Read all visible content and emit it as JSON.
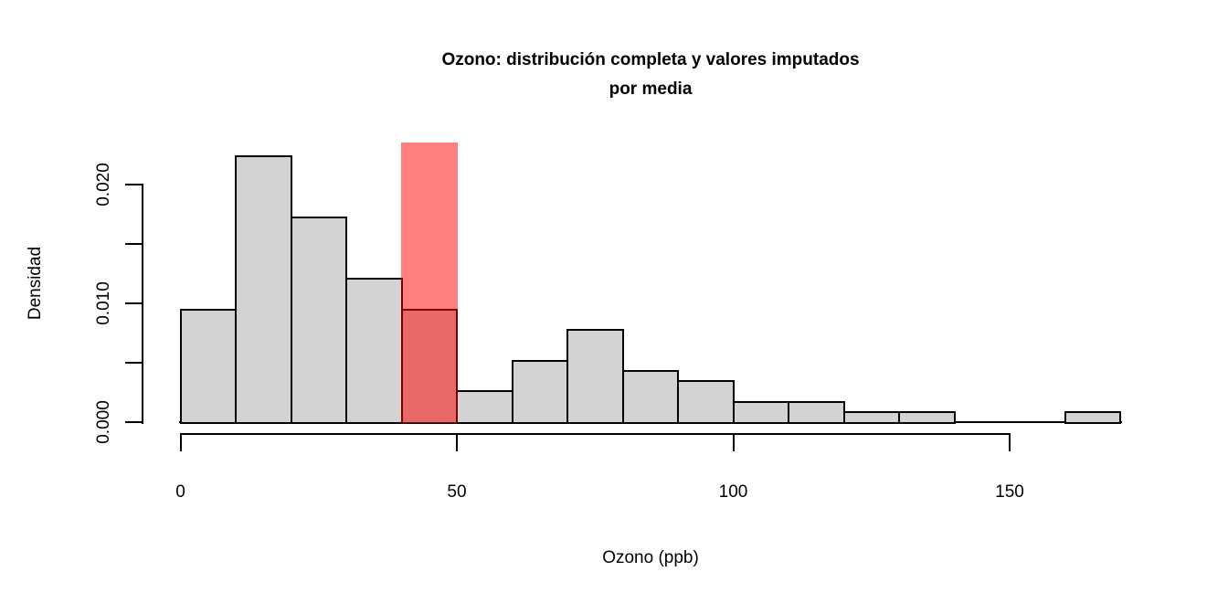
{
  "title": {
    "line1": "Ozono: distribución completa y valores imputados",
    "line2": "por media"
  },
  "axes": {
    "x_label": "Ozono (ppb)",
    "y_label": "Densidad",
    "x_ticks": [
      {
        "value": 0,
        "label": "0"
      },
      {
        "value": 50,
        "label": "50"
      },
      {
        "value": 100,
        "label": "100"
      },
      {
        "value": 150,
        "label": "150"
      }
    ],
    "y_ticks": [
      {
        "value": 0.0,
        "label": "0.000"
      },
      {
        "value": 0.005,
        "label": ""
      },
      {
        "value": 0.01,
        "label": "0.010"
      },
      {
        "value": 0.015,
        "label": ""
      },
      {
        "value": 0.02,
        "label": "0.020"
      }
    ]
  },
  "colors": {
    "bar_fill": "#D3D3D3",
    "bar_border": "#000000",
    "overlay_fill": "rgba(255,0,0,0.5)",
    "axis": "#000000",
    "background": "#FFFFFF"
  },
  "chart_data": {
    "type": "histogram",
    "title": "Ozono: distribución completa y valores imputados por media",
    "xlabel": "Ozono (ppb)",
    "ylabel": "Densidad",
    "xlim": [
      0,
      170
    ],
    "ylim": [
      0,
      0.02355
    ],
    "bin_width": 10,
    "grid": false,
    "bins": [
      {
        "x0": 0,
        "x1": 10,
        "density": 0.009483
      },
      {
        "x0": 10,
        "x1": 20,
        "density": 0.022414
      },
      {
        "x0": 20,
        "x1": 30,
        "density": 0.017241
      },
      {
        "x0": 30,
        "x1": 40,
        "density": 0.012069
      },
      {
        "x0": 40,
        "x1": 50,
        "density": 0.009483
      },
      {
        "x0": 50,
        "x1": 60,
        "density": 0.002586
      },
      {
        "x0": 60,
        "x1": 70,
        "density": 0.005172
      },
      {
        "x0": 70,
        "x1": 80,
        "density": 0.007759
      },
      {
        "x0": 80,
        "x1": 90,
        "density": 0.00431
      },
      {
        "x0": 90,
        "x1": 100,
        "density": 0.003448
      },
      {
        "x0": 100,
        "x1": 110,
        "density": 0.001724
      },
      {
        "x0": 110,
        "x1": 120,
        "density": 0.001724
      },
      {
        "x0": 120,
        "x1": 130,
        "density": 0.000862
      },
      {
        "x0": 130,
        "x1": 140,
        "density": 0.000862
      },
      {
        "x0": 140,
        "x1": 150,
        "density": 0
      },
      {
        "x0": 150,
        "x1": 160,
        "density": 0
      },
      {
        "x0": 160,
        "x1": 170,
        "density": 0.000862
      }
    ],
    "overlay": {
      "name": "valores imputados por media",
      "x0": 40,
      "x1": 50,
      "fill": "rgba(255,0,0,0.5)",
      "drawn_to_density": 0.02355,
      "clipped_at_plot_top": true
    },
    "legend": null
  }
}
